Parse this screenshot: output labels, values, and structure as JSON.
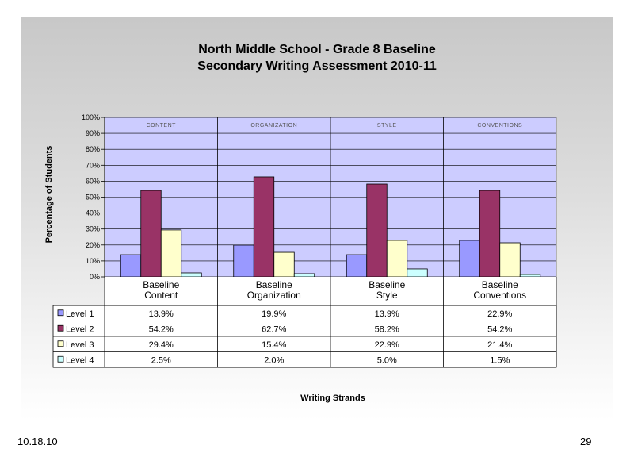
{
  "slide": {
    "title_line1": "North Middle School - Grade 8 Baseline",
    "title_line2": "Secondary Writing Assessment 2010-11",
    "date": "10.18.10",
    "page_number": "29"
  },
  "chart_data": {
    "type": "bar",
    "title": "North Middle School - Grade 8 Baseline Secondary Writing Assessment 2010-11",
    "ylabel": "Percentage of Students",
    "xlabel": "Writing Strands",
    "ylim": [
      0,
      100
    ],
    "yticks": [
      "0%",
      "10%",
      "20%",
      "30%",
      "40%",
      "50%",
      "60%",
      "70%",
      "80%",
      "90%",
      "100%"
    ],
    "strand_labels": [
      "CONTENT",
      "ORGANIZATION",
      "STYLE",
      "CONVENTIONS"
    ],
    "categories": [
      [
        "Baseline",
        "Content"
      ],
      [
        "Baseline",
        "Organization"
      ],
      [
        "Baseline",
        "Style"
      ],
      [
        "Baseline",
        "Conventions"
      ]
    ],
    "grid": true,
    "legend": "data-table",
    "series": [
      {
        "name": "Level 1",
        "color": "#9999ff",
        "values": [
          13.9,
          19.9,
          13.9,
          22.9
        ],
        "labels": [
          "13.9%",
          "19.9%",
          "13.9%",
          "22.9%"
        ]
      },
      {
        "name": "Level 2",
        "color": "#993366",
        "values": [
          54.2,
          62.7,
          58.2,
          54.2
        ],
        "labels": [
          "54.2%",
          "62.7%",
          "58.2%",
          "54.2%"
        ]
      },
      {
        "name": "Level 3",
        "color": "#ffffcc",
        "values": [
          29.4,
          15.4,
          22.9,
          21.4
        ],
        "labels": [
          "29.4%",
          "15.4%",
          "22.9%",
          "21.4%"
        ]
      },
      {
        "name": "Level 4",
        "color": "#ccffff",
        "values": [
          2.5,
          2.0,
          5.0,
          1.5
        ],
        "labels": [
          "2.5%",
          "2.0%",
          "5.0%",
          "1.5%"
        ]
      }
    ],
    "plot_background": "#ccccff"
  }
}
